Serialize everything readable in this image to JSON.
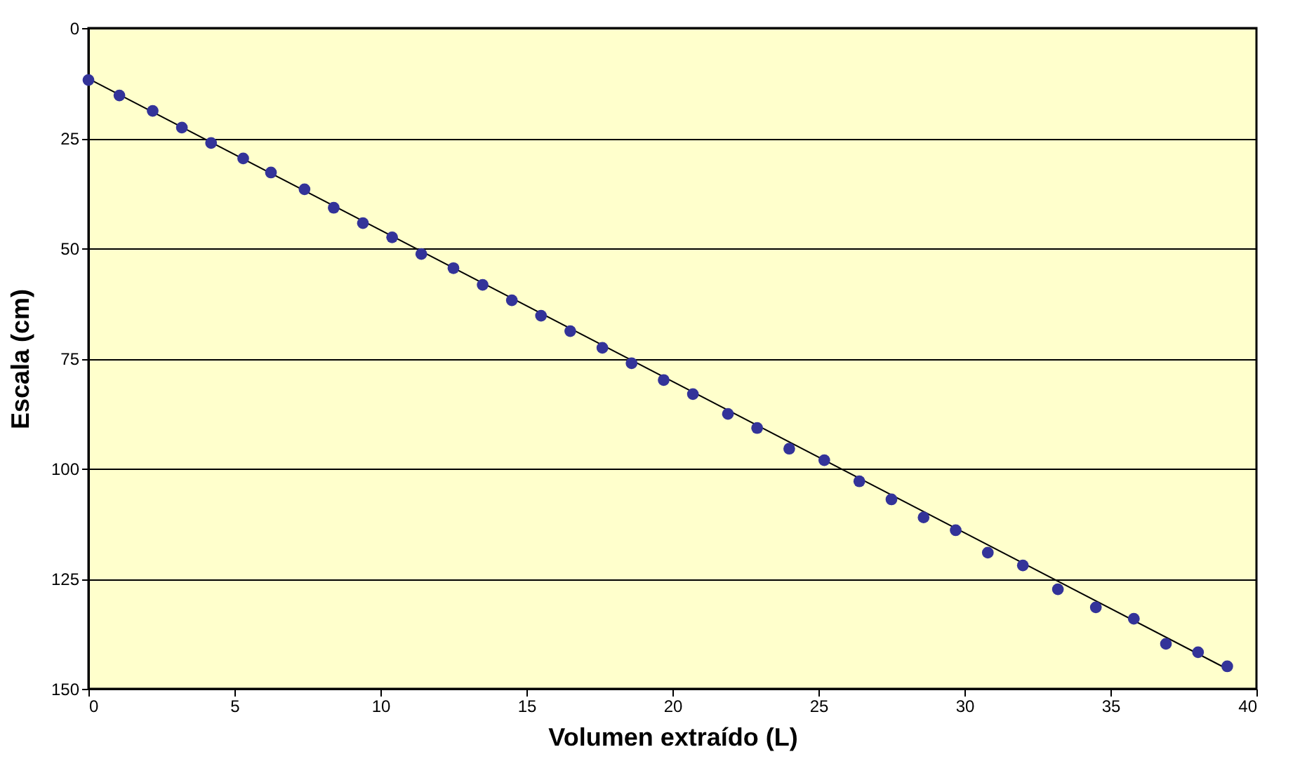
{
  "chart_data": {
    "type": "scatter",
    "xlabel": "Volumen extraído (L)",
    "ylabel": "Escala (cm)",
    "xlim": [
      0,
      40
    ],
    "xticks": [
      0,
      5,
      10,
      15,
      20,
      25,
      30,
      35,
      40
    ],
    "ylim": [
      150,
      0
    ],
    "yticks": [
      0,
      25,
      50,
      75,
      100,
      125,
      150
    ],
    "grid": "y",
    "marker": "circle",
    "series": [
      {
        "color": "#333399",
        "x": [
          0,
          1.06,
          2.2,
          3.2,
          4.2,
          5.3,
          6.25,
          7.4,
          8.4,
          9.4,
          10.4,
          11.4,
          12.5,
          13.5,
          14.5,
          15.5,
          16.5,
          17.6,
          18.6,
          19.7,
          20.7,
          21.9,
          22.9,
          24.0,
          25.2,
          26.4,
          27.5,
          28.6,
          29.7,
          30.8,
          32.0,
          33.2,
          34.5,
          35.8,
          36.9,
          38.0,
          39.0
        ],
        "values": [
          11.8,
          15.3,
          18.8,
          22.6,
          26.1,
          29.6,
          32.8,
          36.6,
          40.8,
          44.3,
          47.5,
          51.3,
          54.5,
          58.3,
          61.8,
          65.3,
          68.8,
          72.6,
          76.1,
          79.9,
          83.1,
          87.6,
          90.8,
          95.5,
          98.1,
          102.9,
          107.0,
          111.1,
          114.0,
          119.1,
          122.0,
          127.4,
          131.5,
          134.1,
          139.8,
          141.7,
          144.9
        ]
      },
      {
        "type": "line",
        "color": "#000000",
        "marker": "none",
        "x": [
          0,
          39
        ],
        "values": [
          11.5,
          145.5
        ]
      }
    ]
  }
}
